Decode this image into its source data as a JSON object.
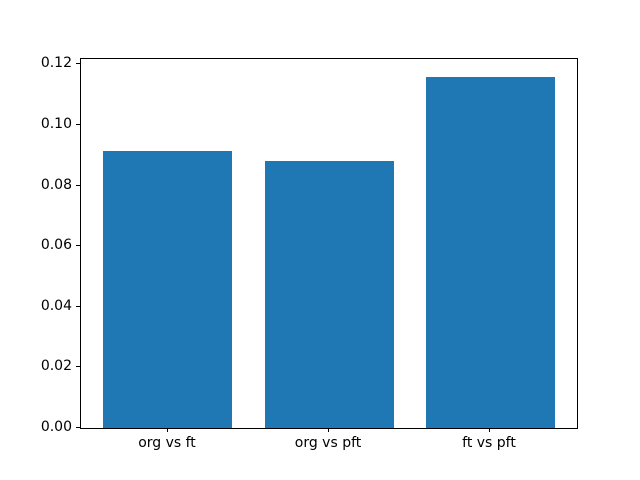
{
  "chart_data": {
    "type": "bar",
    "title": "",
    "xlabel": "",
    "ylabel": "",
    "categories": [
      "org vs ft",
      "org vs pft",
      "ft vs pft"
    ],
    "values": [
      0.0915,
      0.088,
      0.116
    ],
    "ylim": [
      0,
      0.1218
    ],
    "yticks": [
      0.0,
      0.02,
      0.04,
      0.06,
      0.08,
      0.1,
      0.12
    ],
    "ytick_labels": [
      "0.00",
      "0.02",
      "0.04",
      "0.06",
      "0.08",
      "0.10",
      "0.12"
    ],
    "bar_color": "#1f77b4",
    "grid": false,
    "legend": null,
    "background_color": "#ffffff",
    "spine_color": "#000000"
  }
}
